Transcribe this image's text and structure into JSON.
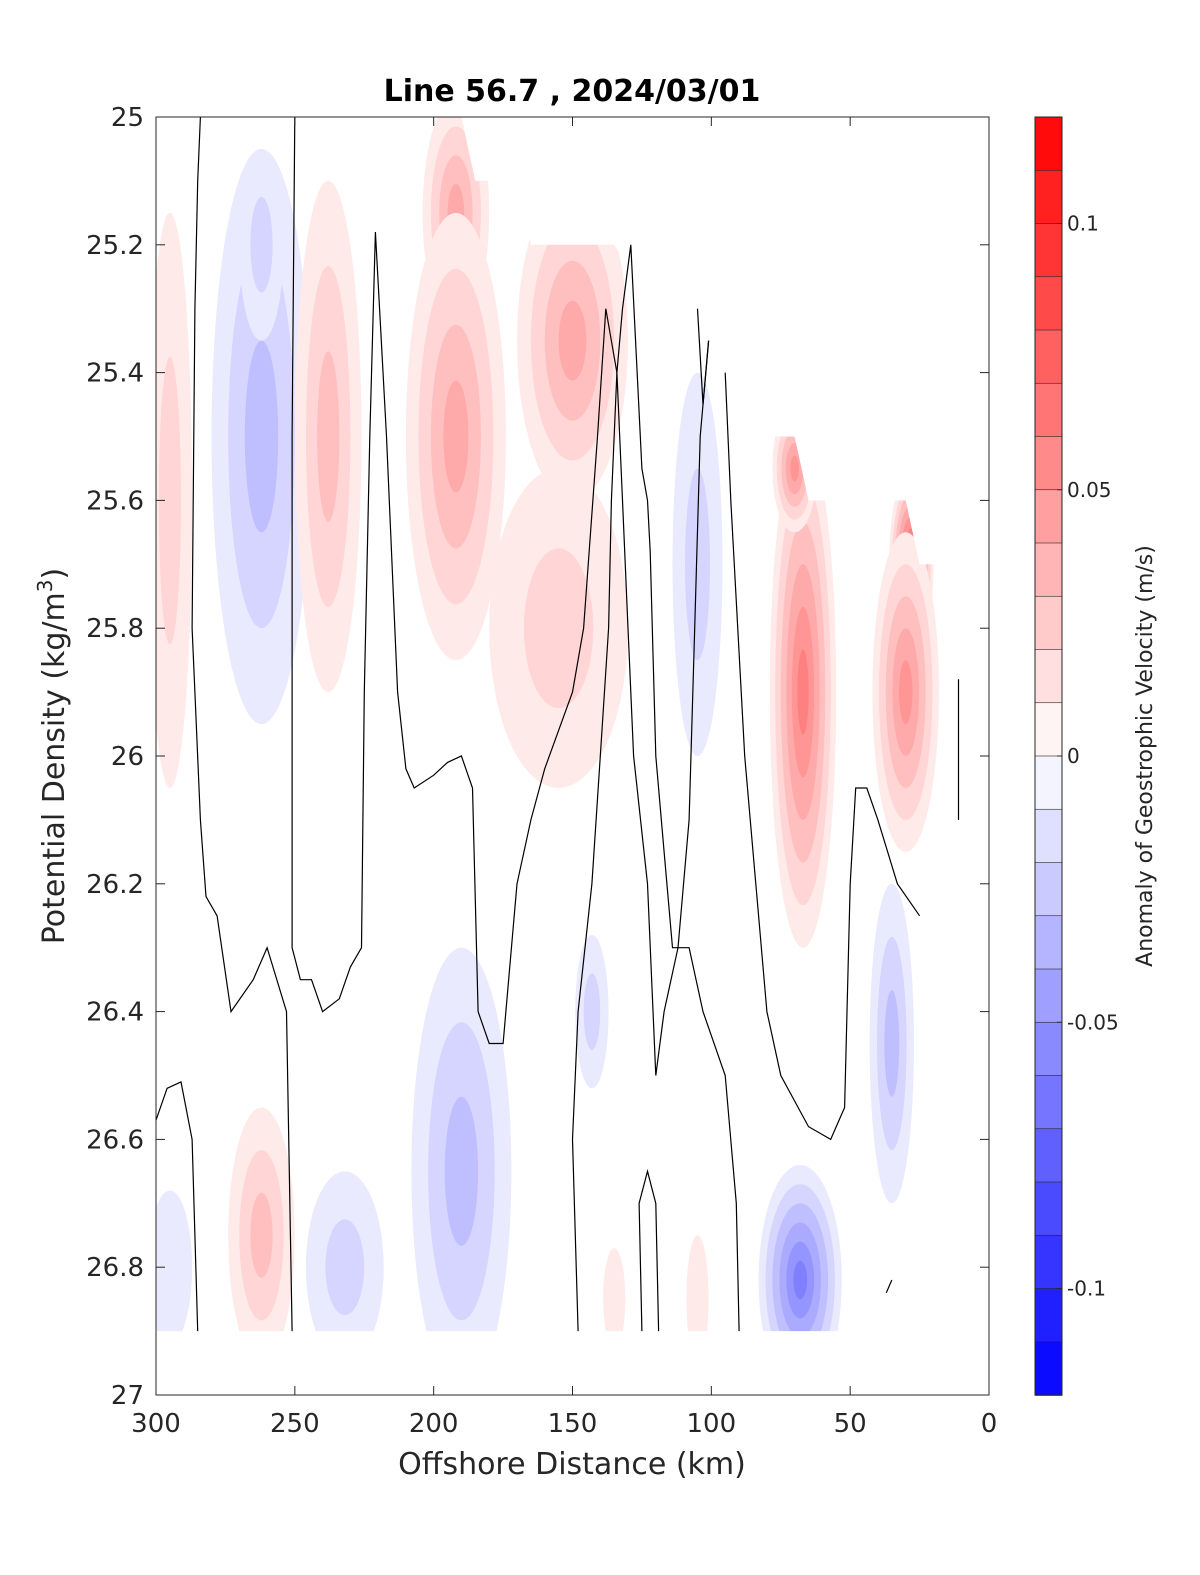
{
  "chart_data": {
    "type": "heatmap",
    "title": "Line 56.7 , 2024/03/01",
    "xlabel": "Offshore Distance (km)",
    "ylabel_text": "Potential Density (kg/m",
    "ylabel_sup": "3",
    "ylabel_close": ")",
    "colorbar_label": "Anomaly of Geostrophic Velocity (m/s)",
    "xlim": [
      300,
      0
    ],
    "ylim": [
      25,
      27
    ],
    "x_reversed": true,
    "y_reversed": true,
    "clim": [
      -0.12,
      0.12
    ],
    "levels_step": 0.01,
    "colormap": "blue-white-red",
    "colors": {
      "negative": "#0000ff",
      "zero": "#ffffff",
      "positive": "#ff0000"
    },
    "grid": false,
    "xticks": [
      300,
      250,
      200,
      150,
      100,
      50,
      0
    ],
    "xtick_labels": [
      "300",
      "250",
      "200",
      "150",
      "100",
      "50",
      "0"
    ],
    "yticks": [
      25,
      25.2,
      25.4,
      25.6,
      25.8,
      26,
      26.2,
      26.4,
      26.6,
      26.8,
      27
    ],
    "ytick_labels": [
      "25",
      "25.2",
      "25.4",
      "25.6",
      "25.8",
      "26",
      "26.2",
      "26.4",
      "26.6",
      "26.8",
      "27"
    ],
    "colorbar_ticks": [
      0.1,
      0.05,
      0,
      -0.05,
      -0.1
    ],
    "colorbar_tick_labels": [
      "0.1",
      "0.05",
      "0",
      "-0.05",
      "-0.1"
    ],
    "data_bottom_density": 26.9,
    "data_top_envelope": [
      [
        300,
        25.0
      ],
      [
        190,
        25.0
      ],
      [
        185,
        25.1
      ],
      [
        170,
        25.1
      ],
      [
        165,
        25.2
      ],
      [
        135,
        25.2
      ],
      [
        120,
        25.3
      ],
      [
        100,
        25.35
      ],
      [
        90,
        25.4
      ],
      [
        80,
        25.5
      ],
      [
        70,
        25.5
      ],
      [
        65,
        25.6
      ],
      [
        30,
        25.6
      ],
      [
        25,
        25.7
      ],
      [
        20,
        25.7
      ],
      [
        12,
        25.85
      ],
      [
        12,
        26.1
      ],
      [
        20,
        26.1
      ]
    ],
    "features": [
      {
        "x": 295,
        "y": 25.6,
        "rx": 8,
        "ry": 0.45,
        "v": 0.02
      },
      {
        "x": 262,
        "y": 25.5,
        "rx": 18,
        "ry": 0.45,
        "v": -0.03
      },
      {
        "x": 262,
        "y": 25.2,
        "rx": 8,
        "ry": 0.15,
        "v": -0.02
      },
      {
        "x": 238,
        "y": 25.5,
        "rx": 12,
        "ry": 0.4,
        "v": 0.025
      },
      {
        "x": 192,
        "y": 25.15,
        "rx": 12,
        "ry": 0.18,
        "v": 0.04
      },
      {
        "x": 192,
        "y": 25.5,
        "rx": 18,
        "ry": 0.35,
        "v": 0.035
      },
      {
        "x": 150,
        "y": 25.35,
        "rx": 20,
        "ry": 0.25,
        "v": 0.04
      },
      {
        "x": 155,
        "y": 25.8,
        "rx": 25,
        "ry": 0.25,
        "v": 0.015
      },
      {
        "x": 105,
        "y": 25.7,
        "rx": 9,
        "ry": 0.3,
        "v": -0.015
      },
      {
        "x": 67,
        "y": 25.9,
        "rx": 12,
        "ry": 0.4,
        "v": 0.06
      },
      {
        "x": 70,
        "y": 25.55,
        "rx": 8,
        "ry": 0.1,
        "v": 0.05
      },
      {
        "x": 28,
        "y": 25.7,
        "rx": 8,
        "ry": 0.15,
        "v": 0.08
      },
      {
        "x": 30,
        "y": 25.9,
        "rx": 12,
        "ry": 0.25,
        "v": 0.05
      },
      {
        "x": 190,
        "y": 26.65,
        "rx": 18,
        "ry": 0.35,
        "v": -0.03
      },
      {
        "x": 143,
        "y": 26.4,
        "rx": 6,
        "ry": 0.12,
        "v": -0.015
      },
      {
        "x": 262,
        "y": 26.75,
        "rx": 12,
        "ry": 0.2,
        "v": 0.03
      },
      {
        "x": 232,
        "y": 26.8,
        "rx": 14,
        "ry": 0.15,
        "v": -0.015
      },
      {
        "x": 295,
        "y": 26.8,
        "rx": 8,
        "ry": 0.12,
        "v": -0.01
      },
      {
        "x": 68,
        "y": 26.82,
        "rx": 15,
        "ry": 0.18,
        "v": -0.055
      },
      {
        "x": 35,
        "y": 26.45,
        "rx": 8,
        "ry": 0.25,
        "v": -0.03
      },
      {
        "x": 105,
        "y": 26.85,
        "rx": 4,
        "ry": 0.1,
        "v": 0.01
      },
      {
        "x": 135,
        "y": 26.85,
        "rx": 4,
        "ry": 0.08,
        "v": 0.01
      }
    ],
    "zero_contours": [
      [
        [
          284,
          25.0
        ],
        [
          285,
          25.1
        ],
        [
          286,
          25.3
        ],
        [
          287,
          25.8
        ],
        [
          286,
          25.9
        ],
        [
          284,
          26.1
        ],
        [
          282,
          26.22
        ],
        [
          278,
          26.25
        ],
        [
          273,
          26.4
        ],
        [
          265,
          26.35
        ],
        [
          260,
          26.3
        ],
        [
          253,
          26.4
        ],
        [
          251,
          26.9
        ]
      ],
      [
        [
          250,
          25.0
        ],
        [
          251,
          25.5
        ],
        [
          251,
          26.3
        ],
        [
          248,
          26.35
        ],
        [
          244,
          26.35
        ],
        [
          240,
          26.4
        ],
        [
          234,
          26.38
        ],
        [
          230,
          26.33
        ],
        [
          226,
          26.3
        ],
        [
          225,
          25.9
        ],
        [
          223,
          25.5
        ],
        [
          221,
          25.18
        ],
        [
          217,
          25.5
        ],
        [
          213,
          25.9
        ],
        [
          210,
          26.02
        ],
        [
          207,
          26.05
        ],
        [
          200,
          26.03
        ],
        [
          195,
          26.01
        ],
        [
          190,
          26.0
        ],
        [
          186,
          26.05
        ],
        [
          184,
          26.4
        ],
        [
          180,
          26.45
        ],
        [
          175,
          26.45
        ],
        [
          170,
          26.2
        ],
        [
          165,
          26.1
        ],
        [
          160,
          26.02
        ],
        [
          150,
          25.9
        ],
        [
          146,
          25.8
        ],
        [
          141,
          25.5
        ],
        [
          138,
          25.3
        ],
        [
          134,
          25.4
        ],
        [
          132,
          25.6
        ],
        [
          130,
          25.8
        ],
        [
          128,
          26.0
        ],
        [
          123,
          26.2
        ],
        [
          120,
          26.5
        ],
        [
          117,
          26.4
        ],
        [
          112,
          26.3
        ],
        [
          108,
          26.1
        ],
        [
          106,
          25.8
        ],
        [
          104,
          25.5
        ],
        [
          101,
          25.35
        ]
      ],
      [
        [
          300,
          26.57
        ],
        [
          296,
          26.52
        ],
        [
          291,
          26.51
        ],
        [
          287,
          26.6
        ],
        [
          285,
          26.9
        ]
      ],
      [
        [
          148,
          26.9
        ],
        [
          150,
          26.6
        ],
        [
          148,
          26.4
        ],
        [
          143,
          26.2
        ],
        [
          140,
          26.0
        ],
        [
          137,
          25.8
        ],
        [
          136,
          25.6
        ],
        [
          134,
          25.4
        ],
        [
          132,
          25.3
        ],
        [
          129,
          25.2
        ],
        [
          125,
          25.55
        ],
        [
          123,
          25.6
        ],
        [
          122,
          25.68
        ],
        [
          120,
          26.0
        ],
        [
          117,
          26.15
        ],
        [
          114,
          26.3
        ],
        [
          108,
          26.3
        ],
        [
          103,
          26.4
        ],
        [
          95,
          26.5
        ],
        [
          91,
          26.7
        ],
        [
          90,
          26.9
        ]
      ],
      [
        [
          105,
          25.3
        ],
        [
          103,
          25.45
        ],
        [
          101,
          25.35
        ]
      ],
      [
        [
          125,
          26.9
        ],
        [
          126,
          26.7
        ],
        [
          123,
          26.65
        ],
        [
          120,
          26.7
        ],
        [
          119,
          26.9
        ]
      ],
      [
        [
          95,
          25.4
        ],
        [
          93,
          25.6
        ],
        [
          88,
          26.0
        ],
        [
          84,
          26.2
        ],
        [
          80,
          26.4
        ],
        [
          75,
          26.5
        ],
        [
          65,
          26.58
        ],
        [
          57,
          26.6
        ],
        [
          52,
          26.55
        ],
        [
          50,
          26.2
        ],
        [
          48,
          26.05
        ],
        [
          44,
          26.05
        ],
        [
          40,
          26.1
        ],
        [
          33,
          26.2
        ],
        [
          25,
          26.25
        ]
      ],
      [
        [
          11,
          25.88
        ],
        [
          11,
          26.1
        ]
      ],
      [
        [
          37,
          26.84
        ],
        [
          35,
          26.82
        ]
      ]
    ]
  }
}
